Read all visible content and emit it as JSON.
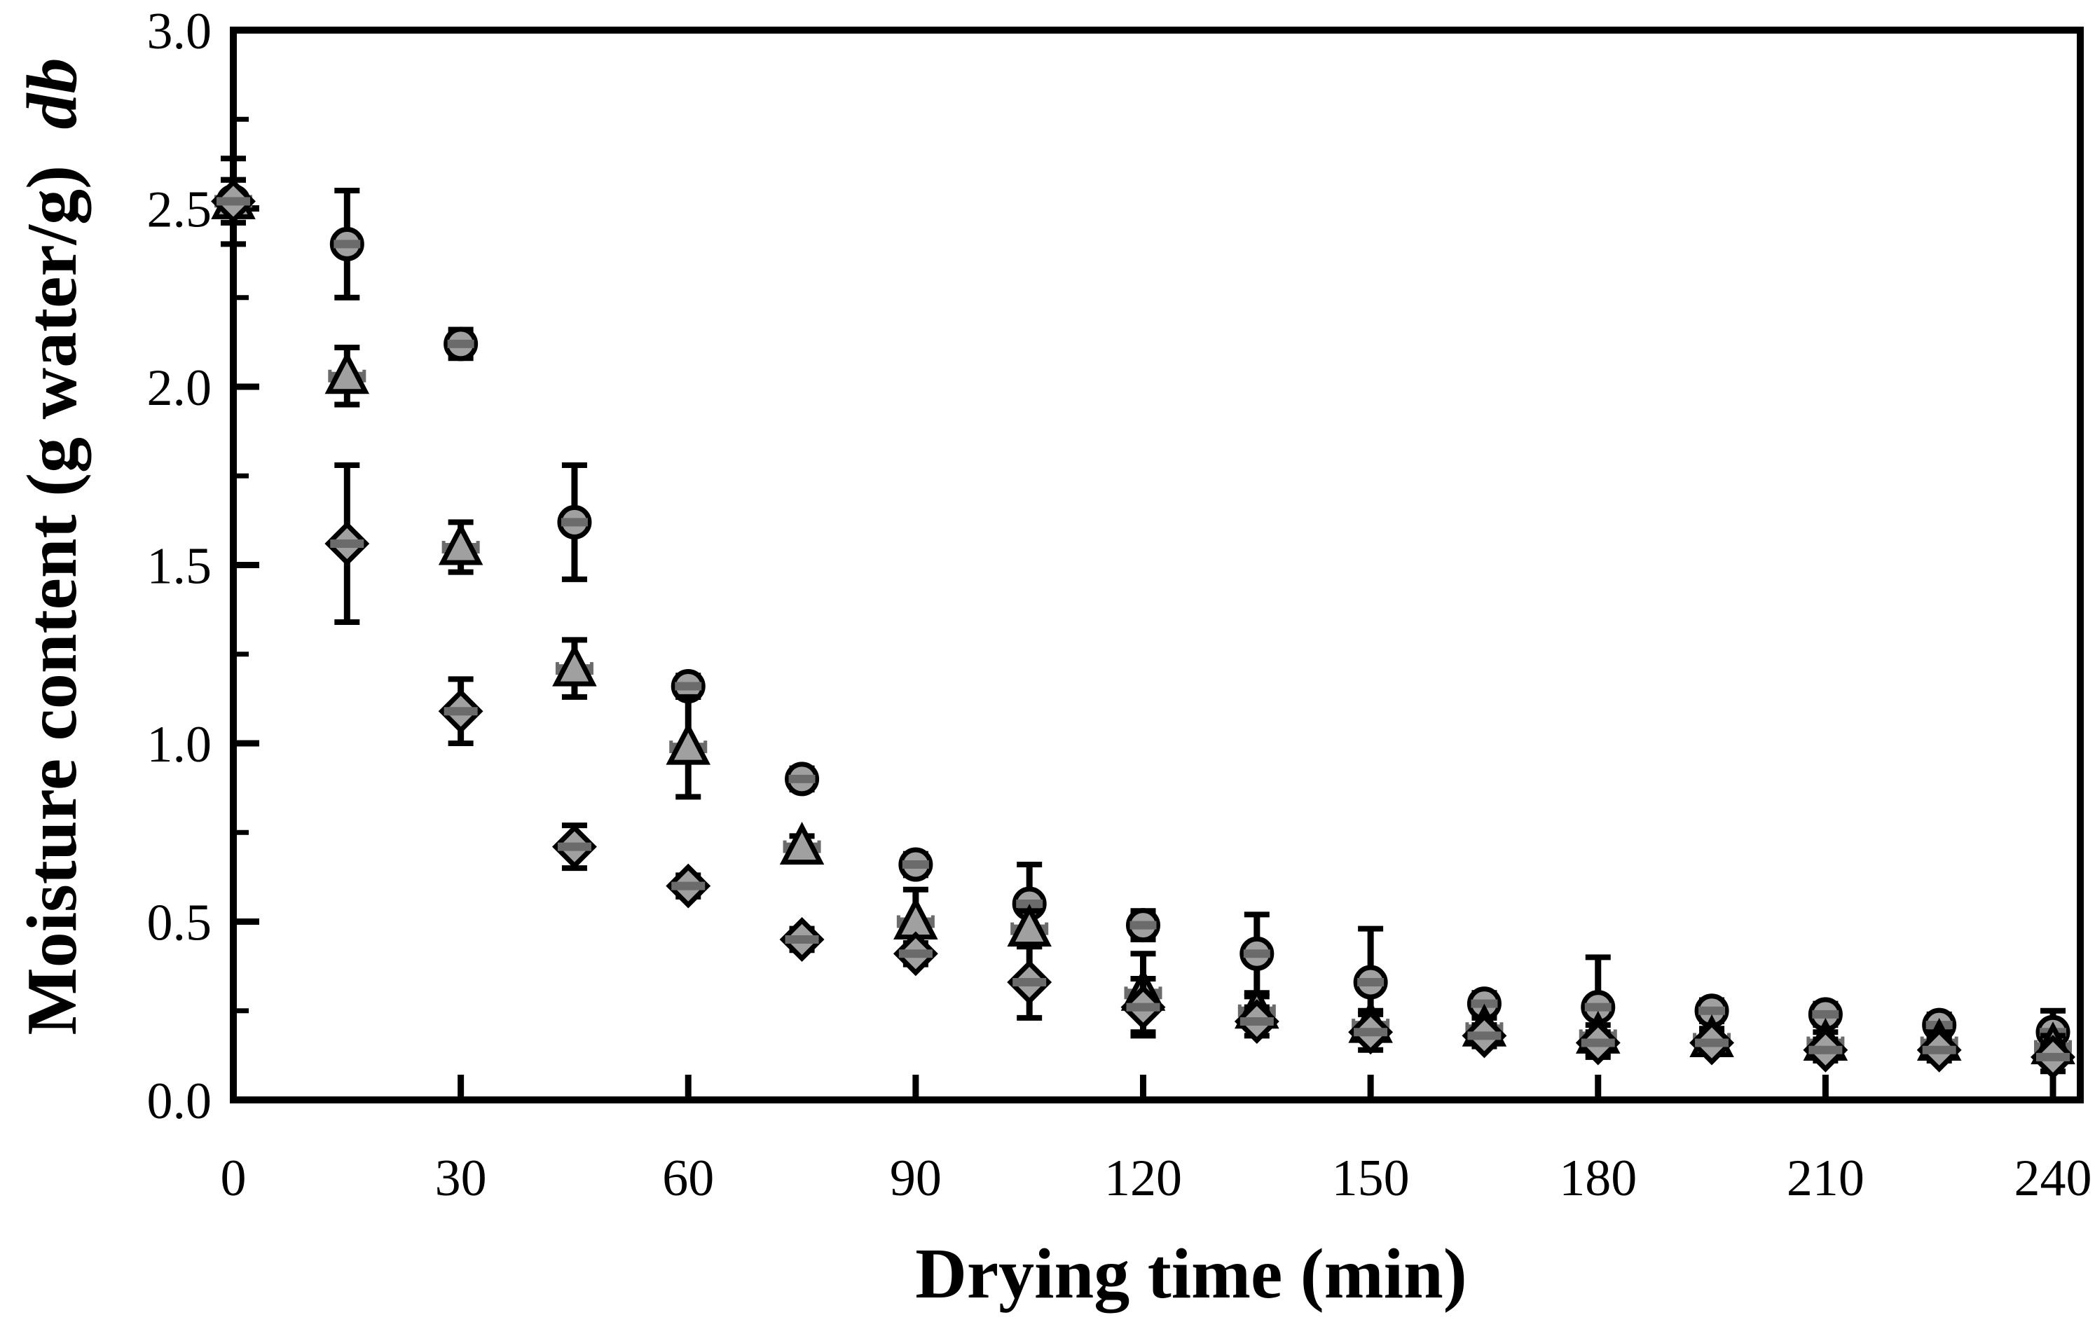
{
  "figure": {
    "background": "#ffffff"
  },
  "chart_data": {
    "type": "scatter",
    "title": "",
    "xlabel": "Drying time (min)",
    "ylabel": "Moisture content (g water/g) db",
    "ylabel_plain": "Moisture content (g water/g)",
    "ylabel_italic_suffix": "db",
    "x": [
      0,
      15,
      30,
      45,
      60,
      75,
      90,
      105,
      120,
      135,
      150,
      165,
      180,
      195,
      210,
      225,
      240
    ],
    "xticks": [
      0,
      30,
      60,
      90,
      120,
      150,
      180,
      210,
      240
    ],
    "ytick_labels": [
      "0.0",
      "0.5",
      "1.0",
      "1.5",
      "2.0",
      "2.5",
      "3.0"
    ],
    "yticks": [
      0,
      0.5,
      1.0,
      1.5,
      2.0,
      2.5,
      3.0
    ],
    "yticks_minor": [
      0.25,
      0.75,
      1.25,
      1.75,
      2.25,
      2.75
    ],
    "xlim": [
      0,
      243.7
    ],
    "ylim": [
      0,
      3.0
    ],
    "grid": false,
    "legend": "none",
    "error_bars": true,
    "series": [
      {
        "name": "series-circle",
        "marker": "circle",
        "values": [
          2.52,
          2.4,
          2.12,
          1.62,
          1.16,
          0.9,
          0.66,
          0.55,
          0.49,
          0.41,
          0.33,
          0.27,
          0.26,
          0.25,
          0.24,
          0.21,
          0.19
        ],
        "errors": [
          0.12,
          0.15,
          0.04,
          0.16,
          0.03,
          0.03,
          0.03,
          0.11,
          0.04,
          0.11,
          0.15,
          0.03,
          0.14,
          0.03,
          0.03,
          0.03,
          0.06
        ]
      },
      {
        "name": "series-triangle",
        "marker": "triangle",
        "values": [
          2.52,
          2.03,
          1.55,
          1.21,
          0.99,
          0.71,
          0.5,
          0.48,
          0.3,
          0.25,
          0.21,
          0.2,
          0.18,
          0.17,
          0.16,
          0.16,
          0.15
        ],
        "errors": [
          0.06,
          0.08,
          0.07,
          0.08,
          0.14,
          0.03,
          0.09,
          0.05,
          0.11,
          0.04,
          0.04,
          0.03,
          0.03,
          0.03,
          0.03,
          0.03,
          0.03
        ]
      },
      {
        "name": "series-diamond",
        "marker": "diamond",
        "values": [
          2.52,
          1.56,
          1.09,
          0.71,
          0.6,
          0.45,
          0.41,
          0.33,
          0.26,
          0.22,
          0.19,
          0.18,
          0.16,
          0.16,
          0.14,
          0.14,
          0.12
        ],
        "errors": [
          0.06,
          0.22,
          0.09,
          0.06,
          0.03,
          0.03,
          0.03,
          0.1,
          0.08,
          0.04,
          0.05,
          0.03,
          0.03,
          0.03,
          0.03,
          0.03,
          0.04
        ]
      }
    ],
    "colors": {
      "axis": "#000000",
      "text": "#000000",
      "error_bar": "#000000",
      "marker_stroke": "#000000",
      "marker_fill": "#a0a0a0",
      "x_error_dash": "#6b6b6b",
      "background": "#ffffff"
    }
  }
}
